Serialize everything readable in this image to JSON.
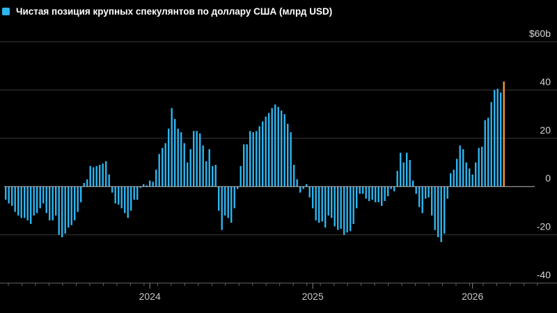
{
  "legend": {
    "label": "Чистая позиция крупных спекулянтов по доллару США (млрд USD)",
    "color": "#2db5ef"
  },
  "colors": {
    "bar": "#2db5ef",
    "highlight": "#f59a3b",
    "grid": "#3a3a3a",
    "zero": "#bdbdbd"
  },
  "chart_data": {
    "type": "bar",
    "title": "",
    "xlabel": "",
    "ylabel": "",
    "ylim": [
      -40,
      60
    ],
    "y_ticks": [
      {
        "value": 60,
        "label": "$60b"
      },
      {
        "value": 40,
        "label": "40"
      },
      {
        "value": 20,
        "label": "20"
      },
      {
        "value": 0,
        "label": "0"
      },
      {
        "value": -20,
        "label": "-20"
      },
      {
        "value": -40,
        "label": "-40"
      }
    ],
    "x_ticks": [
      {
        "index": 46,
        "label": "2024"
      },
      {
        "index": 98,
        "label": "2025"
      },
      {
        "index": 149,
        "label": "2026"
      }
    ],
    "series": [
      {
        "values": [
          -5.5,
          -7,
          -8,
          -10.5,
          -12,
          -13,
          -13,
          -14,
          -15.5,
          -12,
          -11,
          -9,
          -7,
          -11,
          -14,
          -14,
          -12,
          -20,
          -21,
          -19.5,
          -17,
          -16,
          -14,
          -10.5,
          -6.5,
          1.5,
          3,
          8.5,
          8,
          8.5,
          9,
          9.5,
          10.5,
          5,
          -2.5,
          -7,
          -7.5,
          -9,
          -11,
          -13,
          -10,
          -5.5,
          -5.5,
          -0.5,
          1,
          0.5,
          2.5,
          2,
          7,
          13.5,
          16,
          18,
          24,
          32.5,
          28,
          24,
          22.5,
          18,
          10,
          15.5,
          23,
          23,
          22,
          17,
          10.5,
          15.5,
          8.5,
          9,
          -10,
          -18,
          -12,
          -13,
          -15,
          -9,
          -1,
          8.5,
          17.5,
          17.5,
          23,
          22.5,
          23,
          25,
          27,
          29,
          30.5,
          32.5,
          34,
          33,
          31.5,
          30,
          26,
          22.5,
          9,
          3,
          -2.5,
          -1,
          1,
          -4.5,
          -9,
          -14,
          -15,
          -14.5,
          -17,
          -12,
          -13,
          -16.5,
          -18,
          -17.5,
          -20,
          -19,
          -18.5,
          -15.5,
          -9,
          -3,
          -3,
          -5,
          -6,
          -5.5,
          -6.5,
          -6.5,
          -8,
          -6,
          -4,
          -1,
          -2,
          6.5,
          14,
          10,
          14,
          11,
          2.5,
          -3,
          -8.5,
          -11,
          -5,
          -4.5,
          -12,
          -18,
          -21,
          -23,
          -19.5,
          -5,
          5.5,
          7,
          11.5,
          17,
          15.5,
          10,
          7.5,
          5,
          10,
          16,
          16.5,
          27.5,
          28.5,
          35,
          40,
          40.5,
          39,
          43.5
        ]
      }
    ],
    "highlight_last": true
  }
}
